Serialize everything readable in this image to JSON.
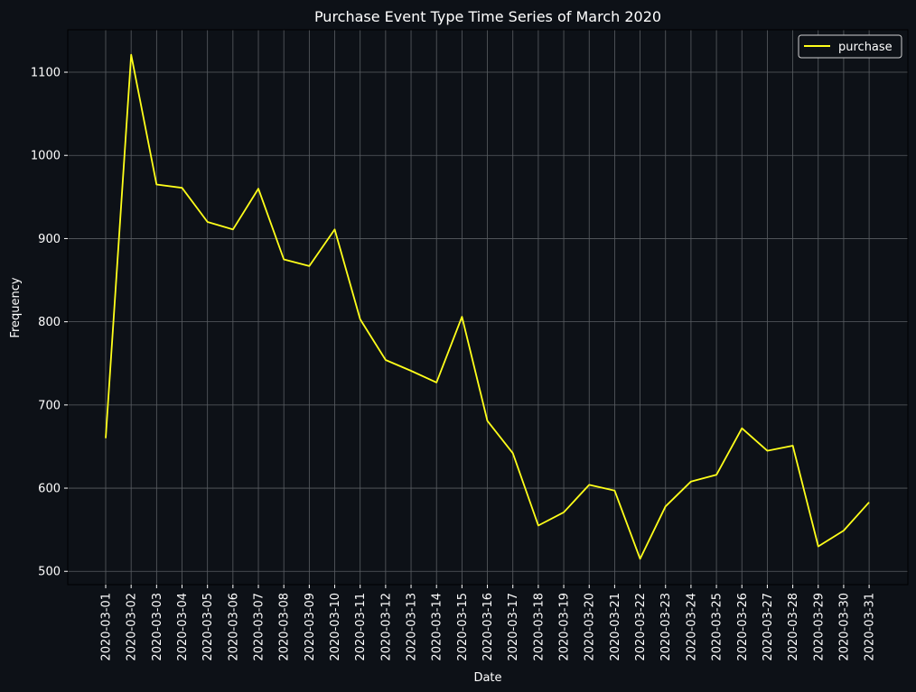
{
  "colors": {
    "background": "#0d1117",
    "axes_frame": "#000000",
    "grid": "#5a5e63",
    "text": "#ffffff",
    "series_line": "#ffff1a"
  },
  "chart_data": {
    "type": "line",
    "title": "Purchase Event Type Time Series of March 2020",
    "xlabel": "Date",
    "ylabel": "Frequency",
    "ylim": [
      484,
      1151
    ],
    "yticks": [
      500,
      600,
      700,
      800,
      900,
      1000,
      1100
    ],
    "grid": true,
    "legend_position": "top-right",
    "x": [
      "2020-03-01",
      "2020-03-02",
      "2020-03-03",
      "2020-03-04",
      "2020-03-05",
      "2020-03-06",
      "2020-03-07",
      "2020-03-08",
      "2020-03-09",
      "2020-03-10",
      "2020-03-11",
      "2020-03-12",
      "2020-03-13",
      "2020-03-14",
      "2020-03-15",
      "2020-03-16",
      "2020-03-17",
      "2020-03-18",
      "2020-03-19",
      "2020-03-20",
      "2020-03-21",
      "2020-03-22",
      "2020-03-23",
      "2020-03-24",
      "2020-03-25",
      "2020-03-26",
      "2020-03-27",
      "2020-03-28",
      "2020-03-29",
      "2020-03-30",
      "2020-03-31"
    ],
    "series": [
      {
        "name": "purchase",
        "values": [
          660,
          1121,
          965,
          961,
          920,
          911,
          960,
          875,
          867,
          911,
          803,
          754,
          741,
          727,
          806,
          681,
          642,
          555,
          571,
          604,
          597,
          515,
          578,
          608,
          616,
          672,
          645,
          651,
          530,
          549,
          583
        ]
      }
    ]
  }
}
